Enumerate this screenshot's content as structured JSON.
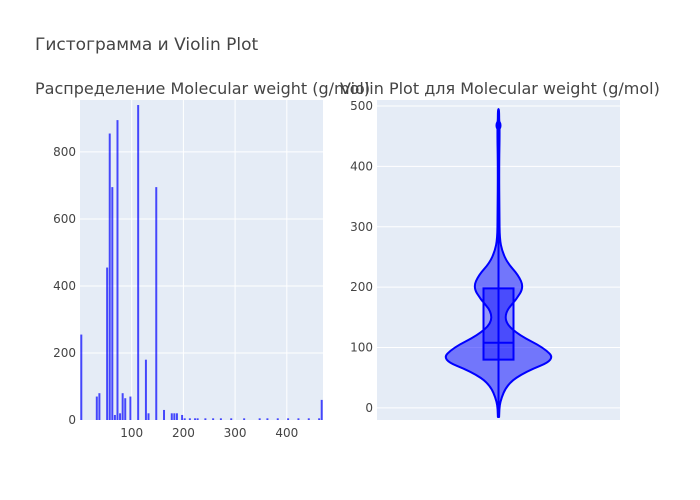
{
  "figure": {
    "title": "Гистограмма и Violin Plot"
  },
  "chart_data": [
    {
      "type": "bar",
      "title": "Распределение Molecular weight (g/mol)",
      "xlabel": "",
      "ylabel": "",
      "bin_width": 5,
      "x": [
        2.5,
        32.5,
        37.5,
        52.5,
        57.5,
        62.5,
        67.5,
        72.5,
        77.5,
        82.5,
        87.5,
        97.5,
        112.5,
        127.5,
        132.5,
        147.5,
        162.5,
        177.5,
        182.5,
        187.5,
        197.5,
        202.5,
        212.5,
        222.5,
        227.5,
        242.5,
        257.5,
        272.5,
        292.5,
        317.5,
        347.5,
        362.5,
        382.5,
        402.5,
        422.5,
        442.5,
        462.5,
        467.5
      ],
      "values": [
        255,
        70,
        80,
        455,
        855,
        695,
        15,
        895,
        20,
        80,
        65,
        70,
        940,
        180,
        20,
        695,
        30,
        20,
        20,
        20,
        15,
        5,
        5,
        5,
        5,
        5,
        5,
        5,
        5,
        5,
        5,
        5,
        5,
        5,
        5,
        5,
        5,
        60
      ],
      "xlim": [
        0,
        470
      ],
      "ylim": [
        0,
        955
      ],
      "x_ticks": [
        "100",
        "200",
        "300",
        "400"
      ],
      "y_ticks": [
        "0",
        "200",
        "400",
        "600",
        "800"
      ],
      "color": "#0000ff",
      "grid": true
    },
    {
      "type": "violin",
      "title": "Violin Plot для Molecular weight (g/mol)",
      "ylim": [
        -20,
        510
      ],
      "y_ticks": [
        "0",
        "100",
        "200",
        "300",
        "400",
        "500"
      ],
      "box": {
        "q1": 80,
        "median": 108,
        "q3": 198,
        "lower_fence": 12,
        "upper_fence": 468,
        "max": 495,
        "min": -15
      },
      "density_profile": {
        "y": [
          -15,
          10,
          40,
          60,
          80,
          100,
          120,
          140,
          160,
          180,
          200,
          220,
          240,
          260,
          280,
          320,
          400,
          460,
          480,
          495
        ],
        "width": [
          0.01,
          0.02,
          0.15,
          0.45,
          0.95,
          0.75,
          0.35,
          0.12,
          0.12,
          0.3,
          0.42,
          0.33,
          0.15,
          0.06,
          0.02,
          0.015,
          0.01,
          0.02,
          0.01,
          0.01
        ]
      },
      "color": "#0000ff",
      "grid": true
    }
  ]
}
